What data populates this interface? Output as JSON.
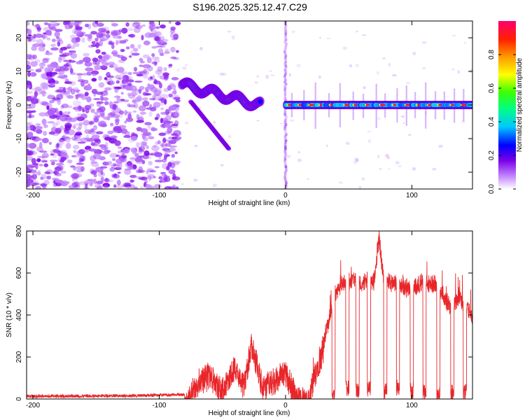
{
  "title": "S196.2025.325.12.47.C29",
  "chart_data": [
    {
      "type": "heatmap",
      "name": "spectrogram",
      "xlabel": "Height of straight line (km)",
      "ylabel": "Frequency (Hz)",
      "xlim": [
        -205,
        148
      ],
      "ylim": [
        -25,
        25
      ],
      "xticks": [
        -200,
        -100,
        0,
        100
      ],
      "yticks": [
        -20,
        -10,
        0,
        10,
        20
      ],
      "grid": false,
      "features": {
        "noise_region_x": [
          -205,
          -85
        ],
        "dispersive_trace_x": [
          -82,
          -20
        ],
        "dispersive_trace_y": [
          6,
          0
        ],
        "secondary_trace_x": [
          -75,
          -45
        ],
        "secondary_trace_y": [
          1,
          -13
        ],
        "stable_line_x": [
          0,
          148
        ],
        "stable_line_y": 0,
        "vertical_artifact_x": 0
      },
      "colorbar": {
        "label": "Normalized spectral amplitude",
        "range": [
          0,
          1
        ],
        "ticks": [
          0.0,
          0.2,
          0.4,
          0.6,
          0.8
        ],
        "tick_labels": [
          "0.0",
          "0.2",
          "0.4",
          "0.6",
          "0.8"
        ],
        "colors": [
          "#ffffff",
          "#c080ff",
          "#7a00e6",
          "#0000ff",
          "#00c8ff",
          "#00ff80",
          "#40ff00",
          "#ffff00",
          "#ffa000",
          "#ff2000",
          "#ff0070"
        ]
      }
    },
    {
      "type": "line",
      "name": "snr",
      "xlabel": "Height of straight line (km)",
      "ylabel": "SNR (10 * v/v)",
      "xlim": [
        -205,
        148
      ],
      "ylim": [
        0,
        800
      ],
      "xticks": [
        -200,
        -100,
        0,
        100
      ],
      "yticks": [
        0,
        200,
        400,
        600,
        800
      ],
      "grid": false,
      "color": "#e8262a",
      "envelope": [
        {
          "x": -205,
          "y": 20
        },
        {
          "x": -120,
          "y": 22
        },
        {
          "x": -80,
          "y": 28
        },
        {
          "x": -72,
          "y": 120
        },
        {
          "x": -60,
          "y": 180
        },
        {
          "x": -50,
          "y": 90
        },
        {
          "x": -40,
          "y": 210
        },
        {
          "x": -33,
          "y": 120
        },
        {
          "x": -27,
          "y": 310
        },
        {
          "x": -18,
          "y": 120
        },
        {
          "x": -10,
          "y": 150
        },
        {
          "x": 0,
          "y": 180
        },
        {
          "x": 10,
          "y": 60
        },
        {
          "x": 18,
          "y": 40
        },
        {
          "x": 22,
          "y": 150
        },
        {
          "x": 30,
          "y": 300
        },
        {
          "x": 38,
          "y": 520
        },
        {
          "x": 45,
          "y": 590
        },
        {
          "x": 55,
          "y": 605
        },
        {
          "x": 60,
          "y": 590
        },
        {
          "x": 70,
          "y": 600
        },
        {
          "x": 74,
          "y": 800
        },
        {
          "x": 78,
          "y": 600
        },
        {
          "x": 90,
          "y": 580
        },
        {
          "x": 100,
          "y": 560
        },
        {
          "x": 110,
          "y": 600
        },
        {
          "x": 120,
          "y": 580
        },
        {
          "x": 130,
          "y": 480
        },
        {
          "x": 138,
          "y": 520
        },
        {
          "x": 148,
          "y": 430
        }
      ],
      "dips": [
        {
          "x": 38,
          "y": 70
        },
        {
          "x": 49,
          "y": 90
        },
        {
          "x": 57,
          "y": 80
        },
        {
          "x": 66,
          "y": 90
        },
        {
          "x": 79,
          "y": 80
        },
        {
          "x": 89,
          "y": 90
        },
        {
          "x": 100,
          "y": 80
        },
        {
          "x": 110,
          "y": 70
        },
        {
          "x": 121,
          "y": 60
        },
        {
          "x": 132,
          "y": 70
        },
        {
          "x": 142,
          "y": 80
        }
      ]
    }
  ]
}
